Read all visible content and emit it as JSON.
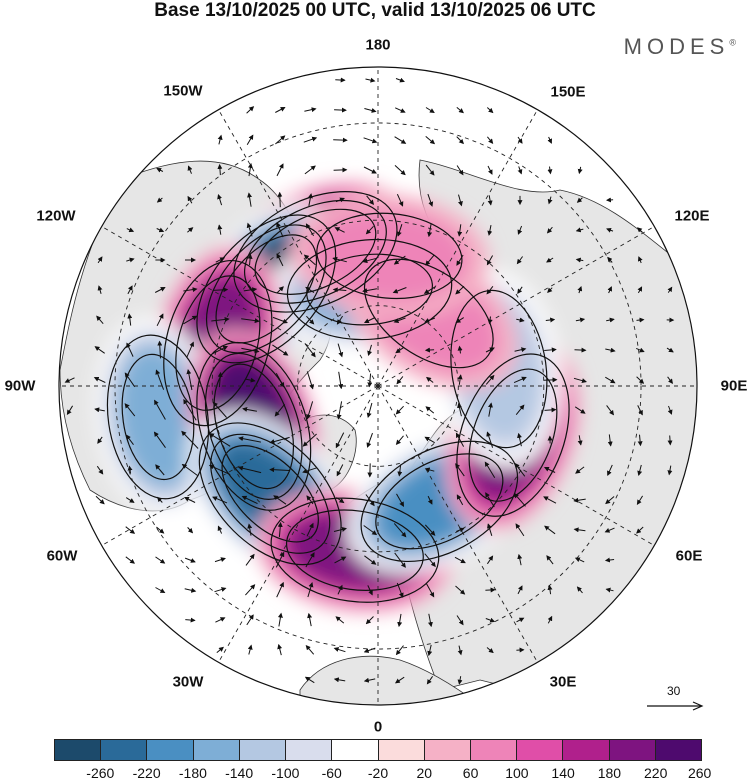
{
  "header": {
    "title": "Base 13/10/2025 00 UTC, valid 13/10/2025 06 UTC",
    "brand": "MODES",
    "brand_mark": "®"
  },
  "map": {
    "projection": "north-polar-stereographic",
    "longitude_labels": {
      "lon_180": "180",
      "lon_150e": "150E",
      "lon_120e": "120E",
      "lon_90e": "90E",
      "lon_60e": "60E",
      "lon_30e": "30E",
      "lon_0": "0",
      "lon_30w": "30W",
      "lon_60w": "60W",
      "lon_90w": "90W",
      "lon_120w": "120W",
      "lon_150w": "150W"
    },
    "anomaly_centers": [
      {
        "name": "pos-150w",
        "lon": -155,
        "lat": 54,
        "value": 260
      },
      {
        "name": "neg-130w",
        "lon": -131,
        "lat": 54,
        "value": -260
      },
      {
        "name": "neg-170w",
        "lon": -175,
        "lat": 66,
        "value": -140
      },
      {
        "name": "pos-105w",
        "lon": -105,
        "lat": 50,
        "value": 180
      },
      {
        "name": "neg-90w",
        "lon": -82,
        "lat": 38,
        "value": -140
      },
      {
        "name": "pos-75w",
        "lon": -72,
        "lat": 58,
        "value": 260
      },
      {
        "name": "neg-45w",
        "lon": -45,
        "lat": 53,
        "value": -220
      },
      {
        "name": "pos-10w",
        "lon": -8,
        "lat": 50,
        "value": 180
      },
      {
        "name": "neg-25e",
        "lon": 28,
        "lat": 58,
        "value": -180
      },
      {
        "name": "pos-70e",
        "lon": 70,
        "lat": 55,
        "value": 180
      },
      {
        "name": "neg-100e",
        "lon": 98,
        "lat": 60,
        "value": -100
      },
      {
        "name": "pos-150e",
        "lon": 145,
        "lat": 68,
        "value": 60
      },
      {
        "name": "pos-170e",
        "lon": 175,
        "lat": 58,
        "value": 60
      }
    ]
  },
  "reference_vector": {
    "value": "30"
  },
  "colorbar": {
    "colors": [
      "#1c4a6b",
      "#2a6a99",
      "#4a8fc2",
      "#7eaed6",
      "#b4c8e2",
      "#d9dded",
      "#ffffff",
      "#fbdcdc",
      "#f5b1c6",
      "#ee84b8",
      "#e04ea8",
      "#b0208c",
      "#7e1480",
      "#4e0a6e"
    ],
    "labels": {
      "t1": "-260",
      "t2": "-220",
      "t3": "-180",
      "t4": "-140",
      "t5": "-100",
      "t6": "-60",
      "t7": "-20",
      "t8": "20",
      "t9": "60",
      "t10": "100",
      "t11": "140",
      "t12": "180",
      "t13": "220",
      "t14": "260"
    }
  }
}
